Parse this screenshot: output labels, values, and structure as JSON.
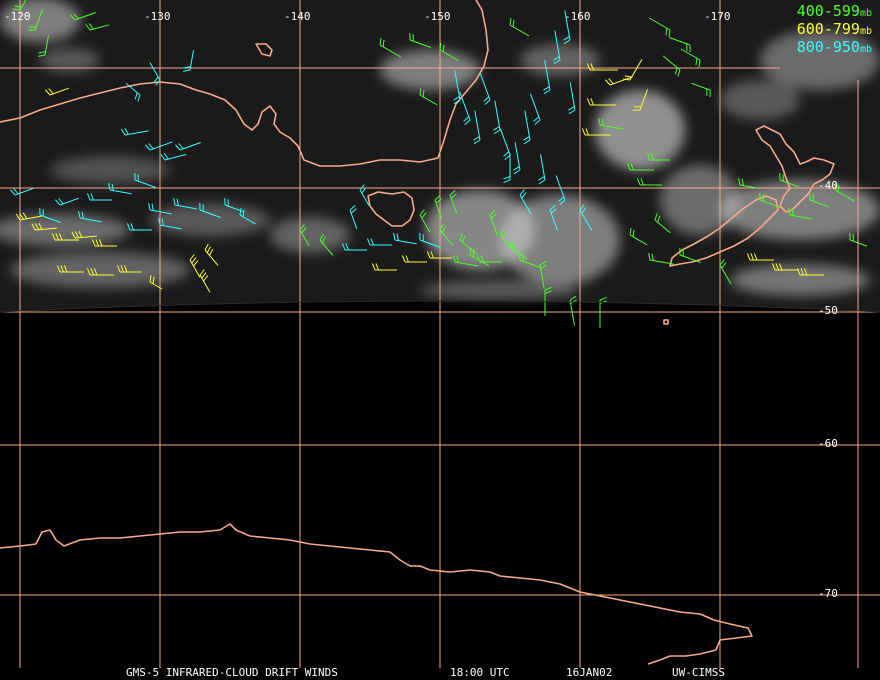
{
  "legend": [
    {
      "label": "400-599",
      "unit": "mb",
      "color": "#4dff2a"
    },
    {
      "label": "600-799",
      "unit": "mb",
      "color": "#ffff33"
    },
    {
      "label": "800-950",
      "unit": "mb",
      "color": "#33ffff"
    }
  ],
  "lon_labels": [
    "-120",
    "-130",
    "-140",
    "-150",
    "-160",
    "-170"
  ],
  "lat_labels": [
    "-40",
    "-50",
    "-60",
    "-70"
  ],
  "footer": {
    "product": "GMS-5 INFRARED-CLOUD DRIFT WINDS",
    "time": "18:00 UTC",
    "date": "16JAN02",
    "source": "UW-CIMSS"
  },
  "colors": {
    "background": "#000000",
    "grid": "#f7a98a",
    "coast": "#f7a98a",
    "cloud": "#d9d9d9"
  }
}
